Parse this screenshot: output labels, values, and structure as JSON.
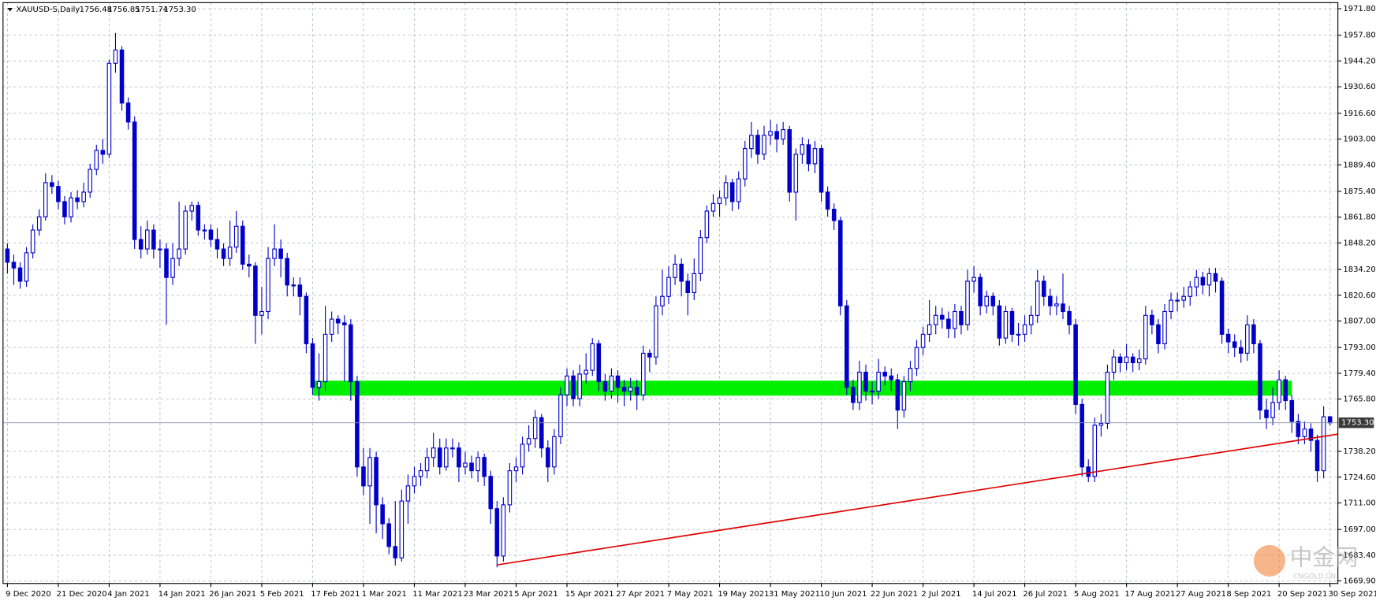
{
  "chart_data": {
    "type": "candlestick",
    "title": "XAUUSD-S,Daily",
    "last_bar_labels": [
      "1756.48",
      "1756.85",
      "1751.74",
      "1753.30"
    ],
    "color": "#0000c8",
    "grid": true,
    "categories": [
      "9 Dec 2020",
      null,
      null,
      null,
      null,
      null,
      null,
      null,
      "21 Dec 2020",
      null,
      null,
      null,
      null,
      null,
      null,
      null,
      "4 Jan 2021",
      null,
      null,
      null,
      null,
      null,
      null,
      null,
      "14 Jan 2021",
      null,
      null,
      null,
      null,
      null,
      null,
      null,
      "26 Jan 2021",
      null,
      null,
      null,
      null,
      null,
      null,
      null,
      "5 Feb 2021",
      null,
      null,
      null,
      null,
      null,
      null,
      null,
      "17 Feb 2021",
      null,
      null,
      null,
      null,
      null,
      null,
      null,
      "1 Mar 2021",
      null,
      null,
      null,
      null,
      null,
      null,
      null,
      "11 Mar 2021",
      null,
      null,
      null,
      null,
      null,
      null,
      null,
      "23 Mar 2021",
      null,
      null,
      null,
      null,
      null,
      null,
      null,
      "5 Apr 2021",
      null,
      null,
      null,
      null,
      null,
      null,
      null,
      "15 Apr 2021",
      null,
      null,
      null,
      null,
      null,
      null,
      null,
      "27 Apr 2021",
      null,
      null,
      null,
      null,
      null,
      null,
      null,
      "7 May 2021",
      null,
      null,
      null,
      null,
      null,
      null,
      null,
      "19 May 2021",
      null,
      null,
      null,
      null,
      null,
      null,
      null,
      "31 May 2021",
      null,
      null,
      null,
      null,
      null,
      null,
      null,
      "10 Jun 2021",
      null,
      null,
      null,
      null,
      null,
      null,
      null,
      "22 Jun 2021",
      null,
      null,
      null,
      null,
      null,
      null,
      null,
      "2 Jul 2021",
      null,
      null,
      null,
      null,
      null,
      null,
      null,
      "14 Jul 2021",
      null,
      null,
      null,
      null,
      null,
      null,
      null,
      "26 Jul 2021",
      null,
      null,
      null,
      null,
      null,
      null,
      null,
      "5 Aug 2021",
      null,
      null,
      null,
      null,
      null,
      null,
      null,
      "17 Aug 2021",
      null,
      null,
      null,
      null,
      null,
      null,
      null,
      "27 Aug 2021",
      null,
      null,
      null,
      null,
      null,
      null,
      null,
      "8 Sep 2021",
      null,
      null,
      null,
      null,
      null,
      null,
      null,
      "20 Sep 2021",
      null,
      null,
      null,
      null,
      null,
      null,
      null,
      "30 Sep 2021"
    ],
    "open": [
      1845,
      1838,
      1835,
      1828,
      1843,
      1855,
      1862,
      1880,
      1878,
      1870,
      1862,
      1872,
      1870,
      1875,
      1887,
      1897,
      1895,
      1943,
      1950,
      1922,
      1912,
      1850,
      1845,
      1855,
      1845,
      1845,
      1830,
      1840,
      1845,
      1865,
      1868,
      1855,
      1855,
      1850,
      1845,
      1840,
      1846,
      1857,
      1837,
      1836,
      1810,
      1812,
      1840,
      1845,
      1840,
      1826,
      1826,
      1820,
      1795,
      1772,
      1775,
      1800,
      1808,
      1806,
      1805,
      1775,
      1730,
      1720,
      1735,
      1710,
      1700,
      1688,
      1682,
      1712,
      1720,
      1725,
      1728,
      1735,
      1740,
      1730,
      1740,
      1740,
      1730,
      1732,
      1728,
      1735,
      1725,
      1708,
      1683,
      1710,
      1728,
      1730,
      1742,
      1745,
      1756,
      1740,
      1730,
      1746,
      1768,
      1778,
      1766,
      1779,
      1781,
      1795,
      1775,
      1770,
      1778,
      1772,
      1770,
      1772,
      1768,
      1790,
      1788,
      1815,
      1820,
      1830,
      1837,
      1828,
      1822,
      1832,
      1851,
      1865,
      1869,
      1872,
      1880,
      1870,
      1882,
      1898,
      1905,
      1895,
      1905,
      1907,
      1903,
      1908,
      1875,
      1895,
      1900,
      1890,
      1898,
      1875,
      1866,
      1860,
      1815,
      1772,
      1764,
      1780,
      1770,
      1770,
      1780,
      1778,
      1776,
      1760,
      1775,
      1782,
      1793,
      1800,
      1805,
      1810,
      1808,
      1803,
      1812,
      1805,
      1828,
      1830,
      1815,
      1820,
      1815,
      1798,
      1812,
      1800,
      1800,
      1805,
      1810,
      1828,
      1820,
      1815,
      1816,
      1812,
      1805,
      1763,
      1730,
      1725,
      1752,
      1753,
      1780,
      1788,
      1785,
      1788,
      1785,
      1787,
      1810,
      1805,
      1795,
      1812,
      1818,
      1818,
      1820,
      1825,
      1830,
      1826,
      1832,
      1828,
      1800,
      1796,
      1793,
      1790,
      1805,
      1795,
      1760,
      1756,
      1764,
      1776,
      1765,
      1754,
      1746,
      1750,
      1744,
      1728,
      1756.48
    ],
    "high": [
      1848,
      1842,
      1838,
      1846,
      1858,
      1866,
      1885,
      1884,
      1881,
      1873,
      1875,
      1876,
      1880,
      1890,
      1900,
      1903,
      1945,
      1959,
      1952,
      1925,
      1915,
      1857,
      1860,
      1858,
      1850,
      1848,
      1848,
      1870,
      1868,
      1870,
      1870,
      1858,
      1858,
      1856,
      1848,
      1860,
      1865,
      1860,
      1842,
      1838,
      1825,
      1846,
      1858,
      1850,
      1843,
      1830,
      1830,
      1822,
      1798,
      1790,
      1815,
      1812,
      1810,
      1810,
      1808,
      1778,
      1740,
      1740,
      1738,
      1714,
      1703,
      1712,
      1718,
      1726,
      1730,
      1732,
      1740,
      1748,
      1745,
      1745,
      1745,
      1743,
      1738,
      1736,
      1738,
      1737,
      1728,
      1712,
      1714,
      1732,
      1735,
      1746,
      1752,
      1760,
      1758,
      1744,
      1750,
      1772,
      1782,
      1781,
      1784,
      1790,
      1798,
      1797,
      1779,
      1782,
      1781,
      1776,
      1777,
      1776,
      1794,
      1792,
      1820,
      1834,
      1836,
      1842,
      1840,
      1832,
      1840,
      1855,
      1868,
      1874,
      1876,
      1884,
      1882,
      1886,
      1902,
      1912,
      1908,
      1910,
      1913,
      1911,
      1912,
      1910,
      1898,
      1904,
      1903,
      1902,
      1900,
      1878,
      1869,
      1862,
      1818,
      1776,
      1786,
      1784,
      1775,
      1787,
      1783,
      1782,
      1779,
      1778,
      1786,
      1797,
      1804,
      1818,
      1815,
      1814,
      1812,
      1816,
      1815,
      1834,
      1836,
      1832,
      1823,
      1822,
      1818,
      1815,
      1814,
      1806,
      1810,
      1815,
      1834,
      1831,
      1824,
      1820,
      1832,
      1815,
      1808,
      1766,
      1734,
      1756,
      1758,
      1784,
      1792,
      1790,
      1795,
      1790,
      1792,
      1815,
      1813,
      1808,
      1816,
      1822,
      1822,
      1825,
      1828,
      1834,
      1833,
      1835,
      1835,
      1830,
      1803,
      1800,
      1797,
      1810,
      1808,
      1797,
      1766,
      1772,
      1781,
      1778,
      1768,
      1758,
      1754,
      1753,
      1747,
      1762,
      1756.85
    ],
    "low": [
      1832,
      1826,
      1824,
      1825,
      1840,
      1852,
      1860,
      1874,
      1866,
      1858,
      1859,
      1866,
      1867,
      1872,
      1884,
      1890,
      1893,
      1938,
      1918,
      1908,
      1845,
      1840,
      1842,
      1840,
      1835,
      1805,
      1826,
      1836,
      1842,
      1860,
      1852,
      1850,
      1846,
      1840,
      1836,
      1836,
      1843,
      1834,
      1830,
      1795,
      1800,
      1808,
      1836,
      1830,
      1820,
      1820,
      1810,
      1790,
      1768,
      1765,
      1770,
      1796,
      1800,
      1775,
      1765,
      1725,
      1715,
      1700,
      1695,
      1692,
      1684,
      1678,
      1680,
      1700,
      1716,
      1720,
      1724,
      1730,
      1726,
      1728,
      1735,
      1722,
      1726,
      1724,
      1722,
      1720,
      1700,
      1677,
      1680,
      1706,
      1722,
      1726,
      1738,
      1740,
      1735,
      1722,
      1726,
      1742,
      1762,
      1762,
      1762,
      1774,
      1778,
      1770,
      1765,
      1766,
      1764,
      1762,
      1765,
      1760,
      1765,
      1780,
      1784,
      1810,
      1816,
      1826,
      1820,
      1810,
      1818,
      1828,
      1848,
      1862,
      1862,
      1868,
      1865,
      1866,
      1878,
      1893,
      1890,
      1892,
      1900,
      1896,
      1900,
      1870,
      1860,
      1890,
      1886,
      1885,
      1870,
      1862,
      1855,
      1810,
      1768,
      1760,
      1760,
      1765,
      1763,
      1766,
      1773,
      1770,
      1750,
      1756,
      1770,
      1778,
      1789,
      1796,
      1800,
      1803,
      1798,
      1798,
      1800,
      1802,
      1822,
      1810,
      1811,
      1810,
      1794,
      1795,
      1796,
      1794,
      1796,
      1800,
      1806,
      1815,
      1810,
      1810,
      1808,
      1800,
      1758,
      1725,
      1722,
      1722,
      1746,
      1750,
      1776,
      1780,
      1781,
      1780,
      1781,
      1784,
      1800,
      1790,
      1792,
      1808,
      1812,
      1814,
      1815,
      1820,
      1821,
      1820,
      1822,
      1795,
      1790,
      1788,
      1785,
      1786,
      1790,
      1755,
      1750,
      1752,
      1760,
      1760,
      1748,
      1742,
      1742,
      1738,
      1722,
      1724,
      1751.74
    ],
    "close": [
      1838,
      1835,
      1828,
      1843,
      1855,
      1862,
      1880,
      1878,
      1870,
      1862,
      1872,
      1870,
      1875,
      1887,
      1897,
      1895,
      1943,
      1950,
      1922,
      1912,
      1850,
      1845,
      1855,
      1845,
      1845,
      1830,
      1840,
      1845,
      1865,
      1868,
      1855,
      1855,
      1850,
      1845,
      1840,
      1846,
      1857,
      1837,
      1836,
      1810,
      1812,
      1840,
      1845,
      1840,
      1826,
      1826,
      1820,
      1795,
      1772,
      1775,
      1800,
      1808,
      1806,
      1805,
      1775,
      1730,
      1720,
      1735,
      1710,
      1700,
      1688,
      1682,
      1712,
      1720,
      1725,
      1728,
      1735,
      1740,
      1730,
      1740,
      1740,
      1730,
      1732,
      1728,
      1735,
      1725,
      1708,
      1683,
      1710,
      1728,
      1730,
      1742,
      1745,
      1756,
      1740,
      1730,
      1746,
      1768,
      1778,
      1766,
      1779,
      1781,
      1795,
      1775,
      1770,
      1778,
      1772,
      1770,
      1772,
      1768,
      1790,
      1788,
      1815,
      1820,
      1830,
      1837,
      1828,
      1822,
      1832,
      1851,
      1865,
      1869,
      1872,
      1880,
      1870,
      1882,
      1898,
      1905,
      1895,
      1905,
      1907,
      1903,
      1908,
      1875,
      1895,
      1900,
      1890,
      1898,
      1875,
      1866,
      1860,
      1815,
      1772,
      1764,
      1780,
      1770,
      1770,
      1780,
      1778,
      1776,
      1760,
      1775,
      1782,
      1793,
      1800,
      1805,
      1810,
      1808,
      1803,
      1812,
      1805,
      1828,
      1830,
      1815,
      1820,
      1815,
      1798,
      1812,
      1800,
      1800,
      1805,
      1810,
      1828,
      1820,
      1815,
      1816,
      1812,
      1805,
      1763,
      1730,
      1725,
      1752,
      1753,
      1780,
      1788,
      1785,
      1788,
      1785,
      1787,
      1810,
      1805,
      1795,
      1812,
      1818,
      1818,
      1820,
      1825,
      1830,
      1826,
      1832,
      1828,
      1800,
      1796,
      1793,
      1790,
      1805,
      1795,
      1760,
      1756,
      1764,
      1776,
      1765,
      1754,
      1746,
      1750,
      1744,
      1728,
      1756.48,
      1753.3
    ],
    "ylim": [
      1668.5,
      1975.0
    ],
    "yticks": [
      {
        "value": 1971.8,
        "label": "1971.80"
      },
      {
        "value": 1957.8,
        "label": "1957.80"
      },
      {
        "value": 1944.2,
        "label": "1944.20"
      },
      {
        "value": 1930.6,
        "label": "1930.60"
      },
      {
        "value": 1916.6,
        "label": "1916.60"
      },
      {
        "value": 1903,
        "label": "1903.00"
      },
      {
        "value": 1889.4,
        "label": "1889.40"
      },
      {
        "value": 1875.4,
        "label": "1875.40"
      },
      {
        "value": 1861.8,
        "label": "1861.80"
      },
      {
        "value": 1848.2,
        "label": "1848.20"
      },
      {
        "value": 1834.2,
        "label": "1834.20"
      },
      {
        "value": 1820.6,
        "label": "1820.60"
      },
      {
        "value": 1807,
        "label": "1807.00"
      },
      {
        "value": 1793,
        "label": "1793.00"
      },
      {
        "value": 1779.4,
        "label": "1779.40"
      },
      {
        "value": 1765.8,
        "label": "1765.80"
      },
      {
        "value": 1738.2,
        "label": "1738.20"
      },
      {
        "value": 1724.6,
        "label": "1724.60"
      },
      {
        "value": 1711,
        "label": "1711.00"
      },
      {
        "value": 1697,
        "label": "1697.00"
      },
      {
        "value": 1683.4,
        "label": "1683.40"
      },
      {
        "value": 1669.9,
        "label": "1669.90"
      }
    ],
    "current_price": {
      "value": 1753.3,
      "label": "1753.30"
    },
    "zone": {
      "x": [
        48,
        202
      ],
      "values": [
        1767.6,
        1775.5
      ],
      "color": "#00ee00"
    },
    "trendline": {
      "x": [
        77,
        210.5
      ],
      "values": [
        1678.3,
        1747.3
      ],
      "color": "#e00000"
    },
    "watermark": {
      "text": "中金网",
      "subtext": "CNGOLD.CN"
    }
  }
}
